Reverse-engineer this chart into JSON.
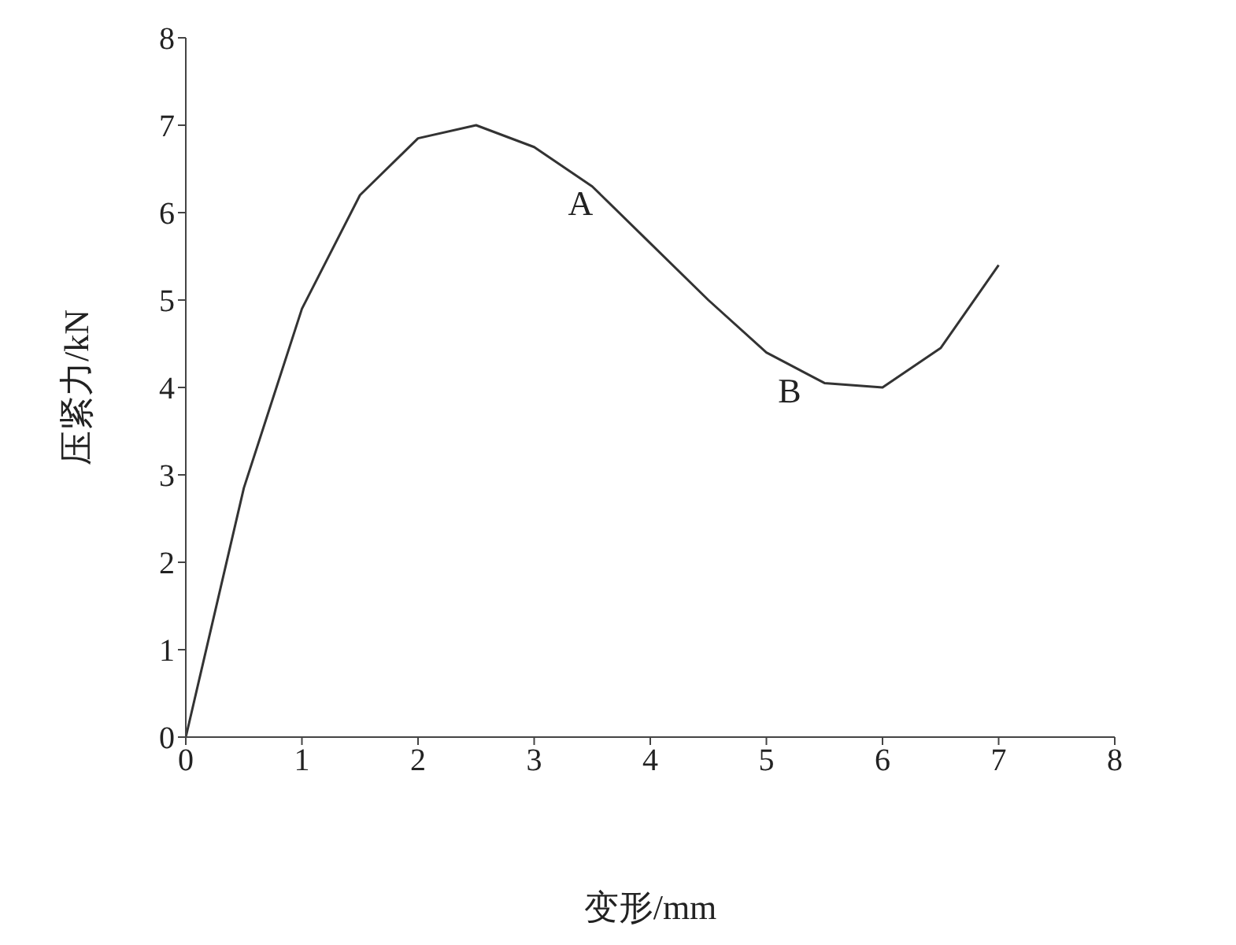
{
  "chart_data": {
    "type": "line",
    "xlabel": "变形/mm",
    "ylabel": "压紧力/kN",
    "x": [
      0,
      0.5,
      1,
      1.5,
      2,
      2.5,
      3,
      3.5,
      4,
      4.5,
      5,
      5.5,
      6,
      6.5,
      7
    ],
    "values": [
      0,
      2.85,
      4.9,
      6.2,
      6.85,
      7.0,
      6.75,
      6.3,
      5.65,
      5.0,
      4.4,
      4.05,
      4.0,
      4.45,
      5.4
    ],
    "color": "#333333",
    "xlim": [
      0,
      8
    ],
    "xticks": [
      0,
      1,
      2,
      3,
      4,
      5,
      6,
      7,
      8
    ],
    "ylim": [
      0,
      8
    ],
    "yticks": [
      0,
      1,
      2,
      3,
      4,
      5,
      6,
      7,
      8
    ],
    "annotations": [
      {
        "text": "A",
        "x": 3.4,
        "y": 6.4
      },
      {
        "text": "B",
        "x": 5.2,
        "y": 4.25
      }
    ]
  }
}
